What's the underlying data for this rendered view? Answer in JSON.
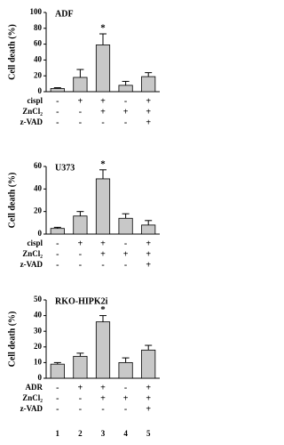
{
  "chart_data": [
    {
      "type": "bar",
      "title": "ADF",
      "ylabel": "Cell death (%)",
      "color": "#c8c8c8",
      "values": [
        4,
        18,
        59,
        8,
        19
      ],
      "errors": [
        1,
        10,
        14,
        5,
        5
      ],
      "significance": [
        null,
        null,
        "*",
        null,
        null
      ],
      "ylim": [
        0,
        100
      ],
      "yticks": [
        0,
        20,
        40,
        60,
        80,
        100
      ],
      "conditions": [
        {
          "name": "cispl",
          "signs": [
            "-",
            "+",
            "+",
            "-",
            "+"
          ]
        },
        {
          "name": "ZnCl₂",
          "signs": [
            "-",
            "-",
            "+",
            "+",
            "+"
          ]
        },
        {
          "name": "z-VAD",
          "signs": [
            "-",
            "-",
            "-",
            "-",
            "+"
          ]
        }
      ]
    },
    {
      "type": "bar",
      "title": "U373",
      "ylabel": "Cell death (%)",
      "color": "#c8c8c8",
      "values": [
        5,
        16,
        49,
        14,
        8
      ],
      "errors": [
        1,
        4,
        8,
        4,
        4
      ],
      "significance": [
        null,
        null,
        "*",
        null,
        null
      ],
      "ylim": [
        0,
        60
      ],
      "yticks": [
        0,
        20,
        40,
        60
      ],
      "conditions": [
        {
          "name": "cispl",
          "signs": [
            "-",
            "+",
            "+",
            "-",
            "+"
          ]
        },
        {
          "name": "ZnCl₂",
          "signs": [
            "-",
            "-",
            "+",
            "+",
            "+"
          ]
        },
        {
          "name": "z-VAD",
          "signs": [
            "-",
            "-",
            "-",
            "-",
            "+"
          ]
        }
      ]
    },
    {
      "type": "bar",
      "title": "RKO-HIPK2i",
      "ylabel": "Cell death (%)",
      "color": "#c8c8c8",
      "values": [
        9,
        14,
        36,
        10,
        18
      ],
      "errors": [
        1,
        2,
        4,
        3,
        3
      ],
      "significance": [
        null,
        null,
        "*",
        null,
        null
      ],
      "ylim": [
        0,
        50
      ],
      "yticks": [
        0,
        10,
        20,
        30,
        40,
        50
      ],
      "conditions": [
        {
          "name": "ADR",
          "signs": [
            "-",
            "+",
            "+",
            "-",
            "+"
          ]
        },
        {
          "name": "ZnCl₂",
          "signs": [
            "-",
            "-",
            "+",
            "+",
            "+"
          ]
        },
        {
          "name": "z-VAD",
          "signs": [
            "-",
            "-",
            "-",
            "-",
            "+"
          ]
        }
      ]
    }
  ],
  "lane_labels": [
    "1",
    "2",
    "3",
    "4",
    "5"
  ]
}
